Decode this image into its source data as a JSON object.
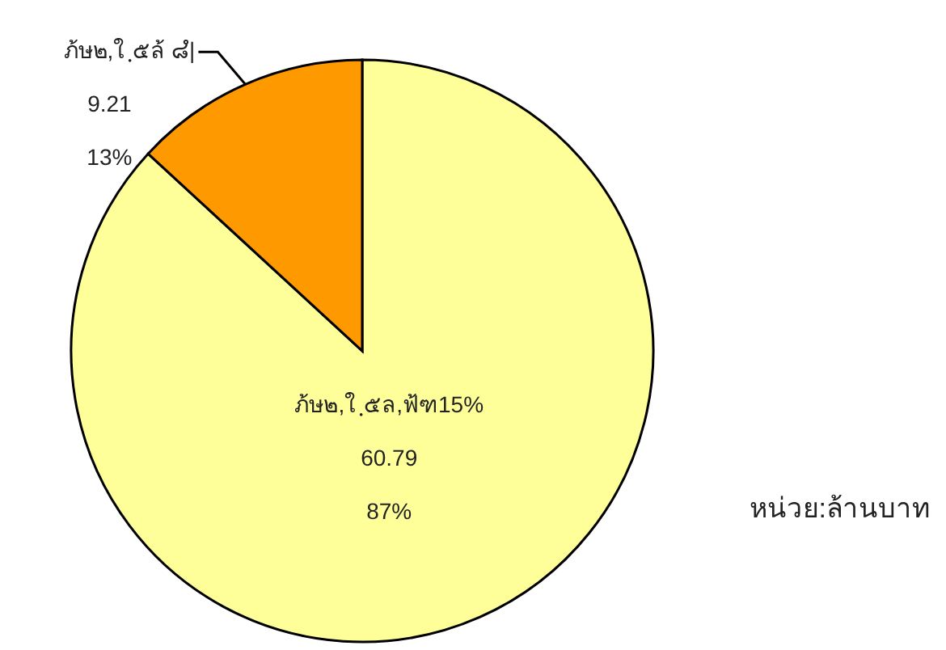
{
  "chart_data": {
    "type": "pie",
    "categories": [
      "ภ้ษ๒,ใ ฺ๕ล,ฟ้ฑ15%",
      "ภ้ษ๒,ใ ฺ๕ล้ ๘ํ|"
    ],
    "values": [
      60.79,
      9.21
    ],
    "colors": [
      "#ffff99",
      "#ff9900"
    ],
    "data_labels": true,
    "annotations": [
      "87%",
      "13%",
      "หน่วย:ล้านบาท"
    ]
  }
}
